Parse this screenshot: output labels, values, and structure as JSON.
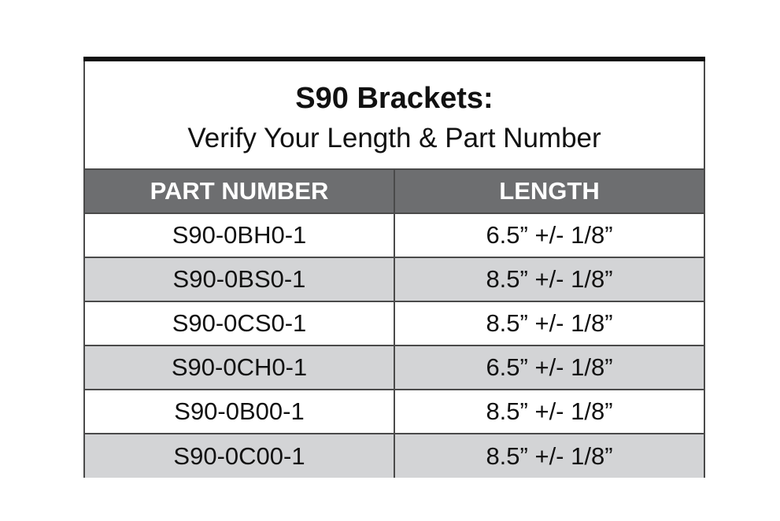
{
  "title": "S90 Brackets:",
  "subtitle": "Verify Your Length & Part Number",
  "colors": {
    "header_bg": "#6d6e70",
    "alt_row_bg": "#d3d4d6",
    "top_bar": "#111111"
  },
  "table": {
    "headers": [
      "PART NUMBER",
      "LENGTH"
    ],
    "rows": [
      [
        "S90-0BH0-1",
        "6.5” +/- 1/8”"
      ],
      [
        "S90-0BS0-1",
        "8.5” +/- 1/8”"
      ],
      [
        "S90-0CS0-1",
        "8.5” +/- 1/8”"
      ],
      [
        "S90-0CH0-1",
        "6.5” +/- 1/8”"
      ],
      [
        "S90-0B00-1",
        "8.5” +/- 1/8”"
      ],
      [
        "S90-0C00-1",
        "8.5” +/- 1/8”"
      ]
    ]
  }
}
